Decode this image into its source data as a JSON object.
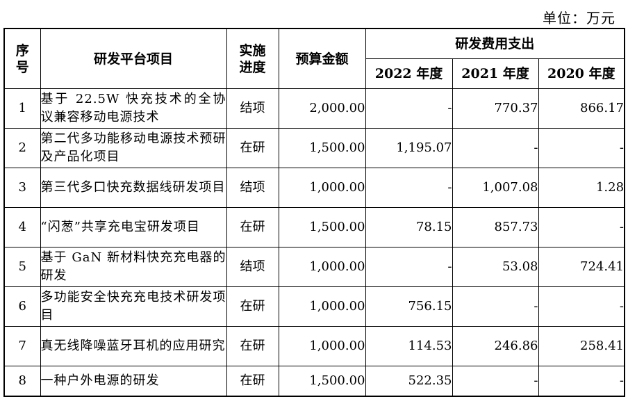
{
  "unit": "单位：万元",
  "headers": {
    "seq": "序号",
    "platform": "研发平台项目",
    "status": "实施进度",
    "budget": "预算金额",
    "expense_group": "研发费用支出",
    "years": [
      "2022 年度",
      "2021 年度",
      "2020 年度"
    ]
  },
  "rows": [
    {
      "seq": "1",
      "name": "基于 22.5W 快充技术的全协议兼容移动电源技术",
      "status": "结项",
      "budget": "2,000.00",
      "y2022": "-",
      "y2021": "770.37",
      "y2020": "866.17"
    },
    {
      "seq": "2",
      "name": "第二代多功能移动电源技术预研及产品化项目",
      "status": "在研",
      "budget": "1,500.00",
      "y2022": "1,195.07",
      "y2021": "-",
      "y2020": "-"
    },
    {
      "seq": "3",
      "name": "第三代多口快充数据线研发项目",
      "status": "结项",
      "budget": "1,000.00",
      "y2022": "-",
      "y2021": "1,007.08",
      "y2020": "1.28"
    },
    {
      "seq": "4",
      "name": "“闪葱”共享充电宝研发项目",
      "status": "在研",
      "budget": "1,500.00",
      "y2022": "78.15",
      "y2021": "857.73",
      "y2020": "-"
    },
    {
      "seq": "5",
      "name": "基于 GaN 新材料快充充电器的研发",
      "status": "结项",
      "budget": "1,000.00",
      "y2022": "-",
      "y2021": "53.08",
      "y2020": "724.41"
    },
    {
      "seq": "6",
      "name": "多功能安全快充充电技术研发项目",
      "status": "在研",
      "budget": "1,000.00",
      "y2022": "756.15",
      "y2021": "-",
      "y2020": "-"
    },
    {
      "seq": "7",
      "name": "真无线降噪蓝牙耳机的应用研究",
      "status": "在研",
      "budget": "1,000.00",
      "y2022": "114.53",
      "y2021": "246.86",
      "y2020": "258.41"
    },
    {
      "seq": "8",
      "name": "一种户外电源的研发",
      "status": "在研",
      "budget": "1,500.00",
      "y2022": "522.35",
      "y2021": "-",
      "y2020": "-"
    }
  ]
}
